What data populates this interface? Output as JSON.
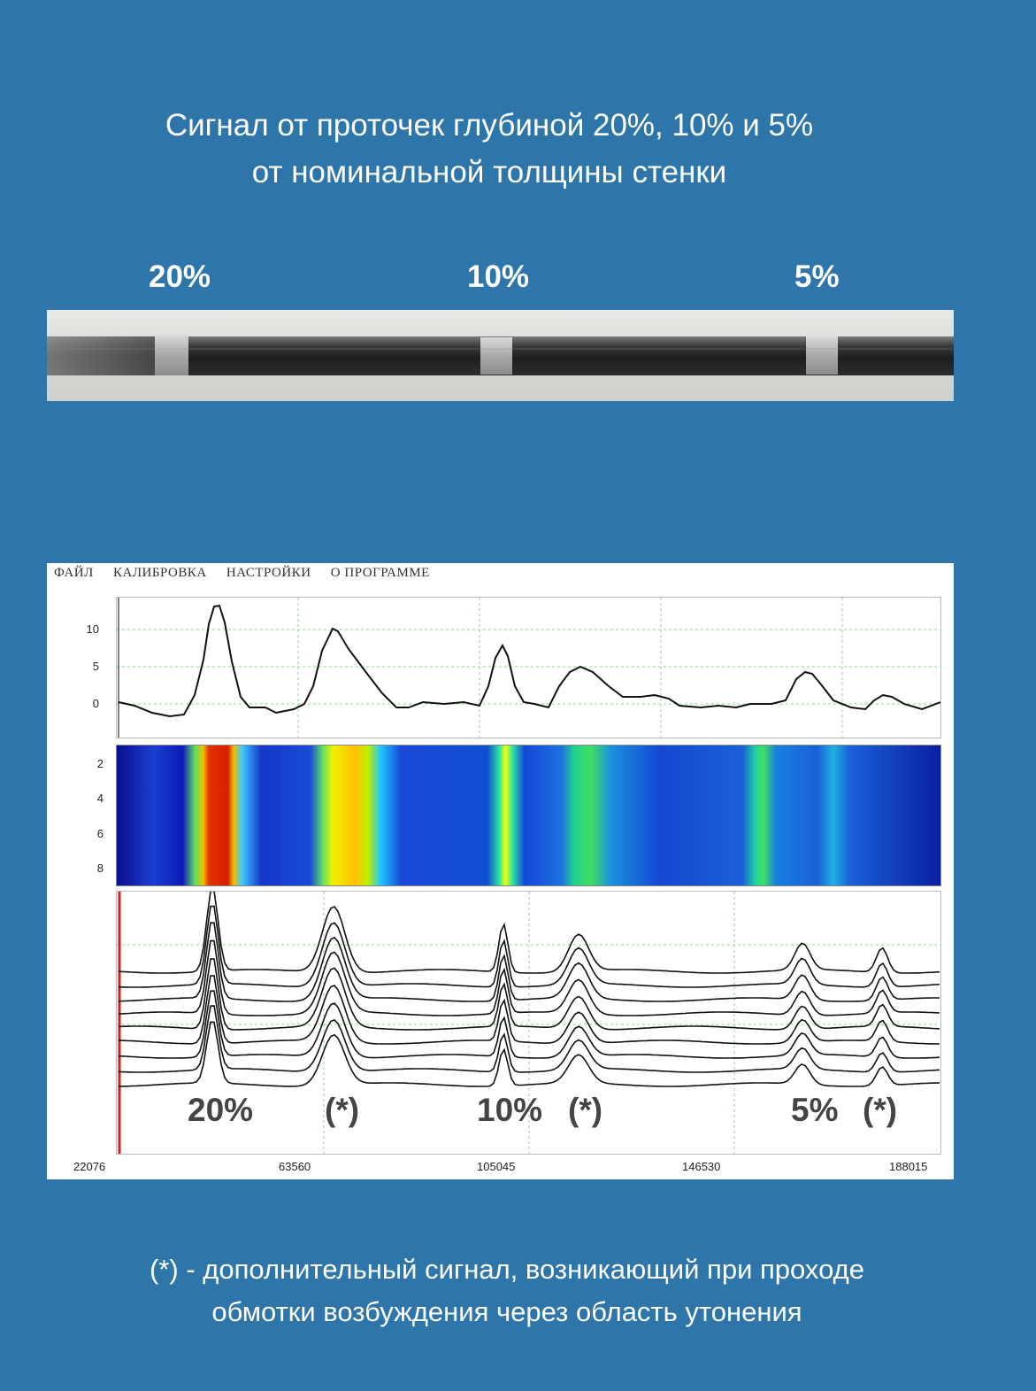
{
  "title": {
    "line1": "Сигнал от проточек глубиной 20%, 10% и 5%",
    "line2": "от номинальной толщины стенки"
  },
  "groove_labels": [
    "20%",
    "10%",
    "5%"
  ],
  "menu": [
    "ФАЙЛ",
    "КАЛИБРОВКА",
    "НАСТРОЙКИ",
    "О ПРОГРАММЕ"
  ],
  "top_chart": {
    "y_ticks": [
      "10",
      "5",
      "0"
    ]
  },
  "heatmap": {
    "y_ticks": [
      "2",
      "4",
      "6",
      "8"
    ]
  },
  "x_ticks": [
    "22076",
    "63560",
    "105045",
    "146530",
    "188015"
  ],
  "annotations": [
    "20%",
    "(*)",
    "10%",
    "(*)",
    "5%",
    "(*)"
  ],
  "footnote": {
    "line1": "(*) - дополнительный сигнал, возникающий при проходе",
    "line2": "обмотки возбуждения через область утонения"
  },
  "colors": {
    "background": "#2e75a9",
    "heat_low": "#00008f",
    "heat_high": "#d40000"
  }
}
